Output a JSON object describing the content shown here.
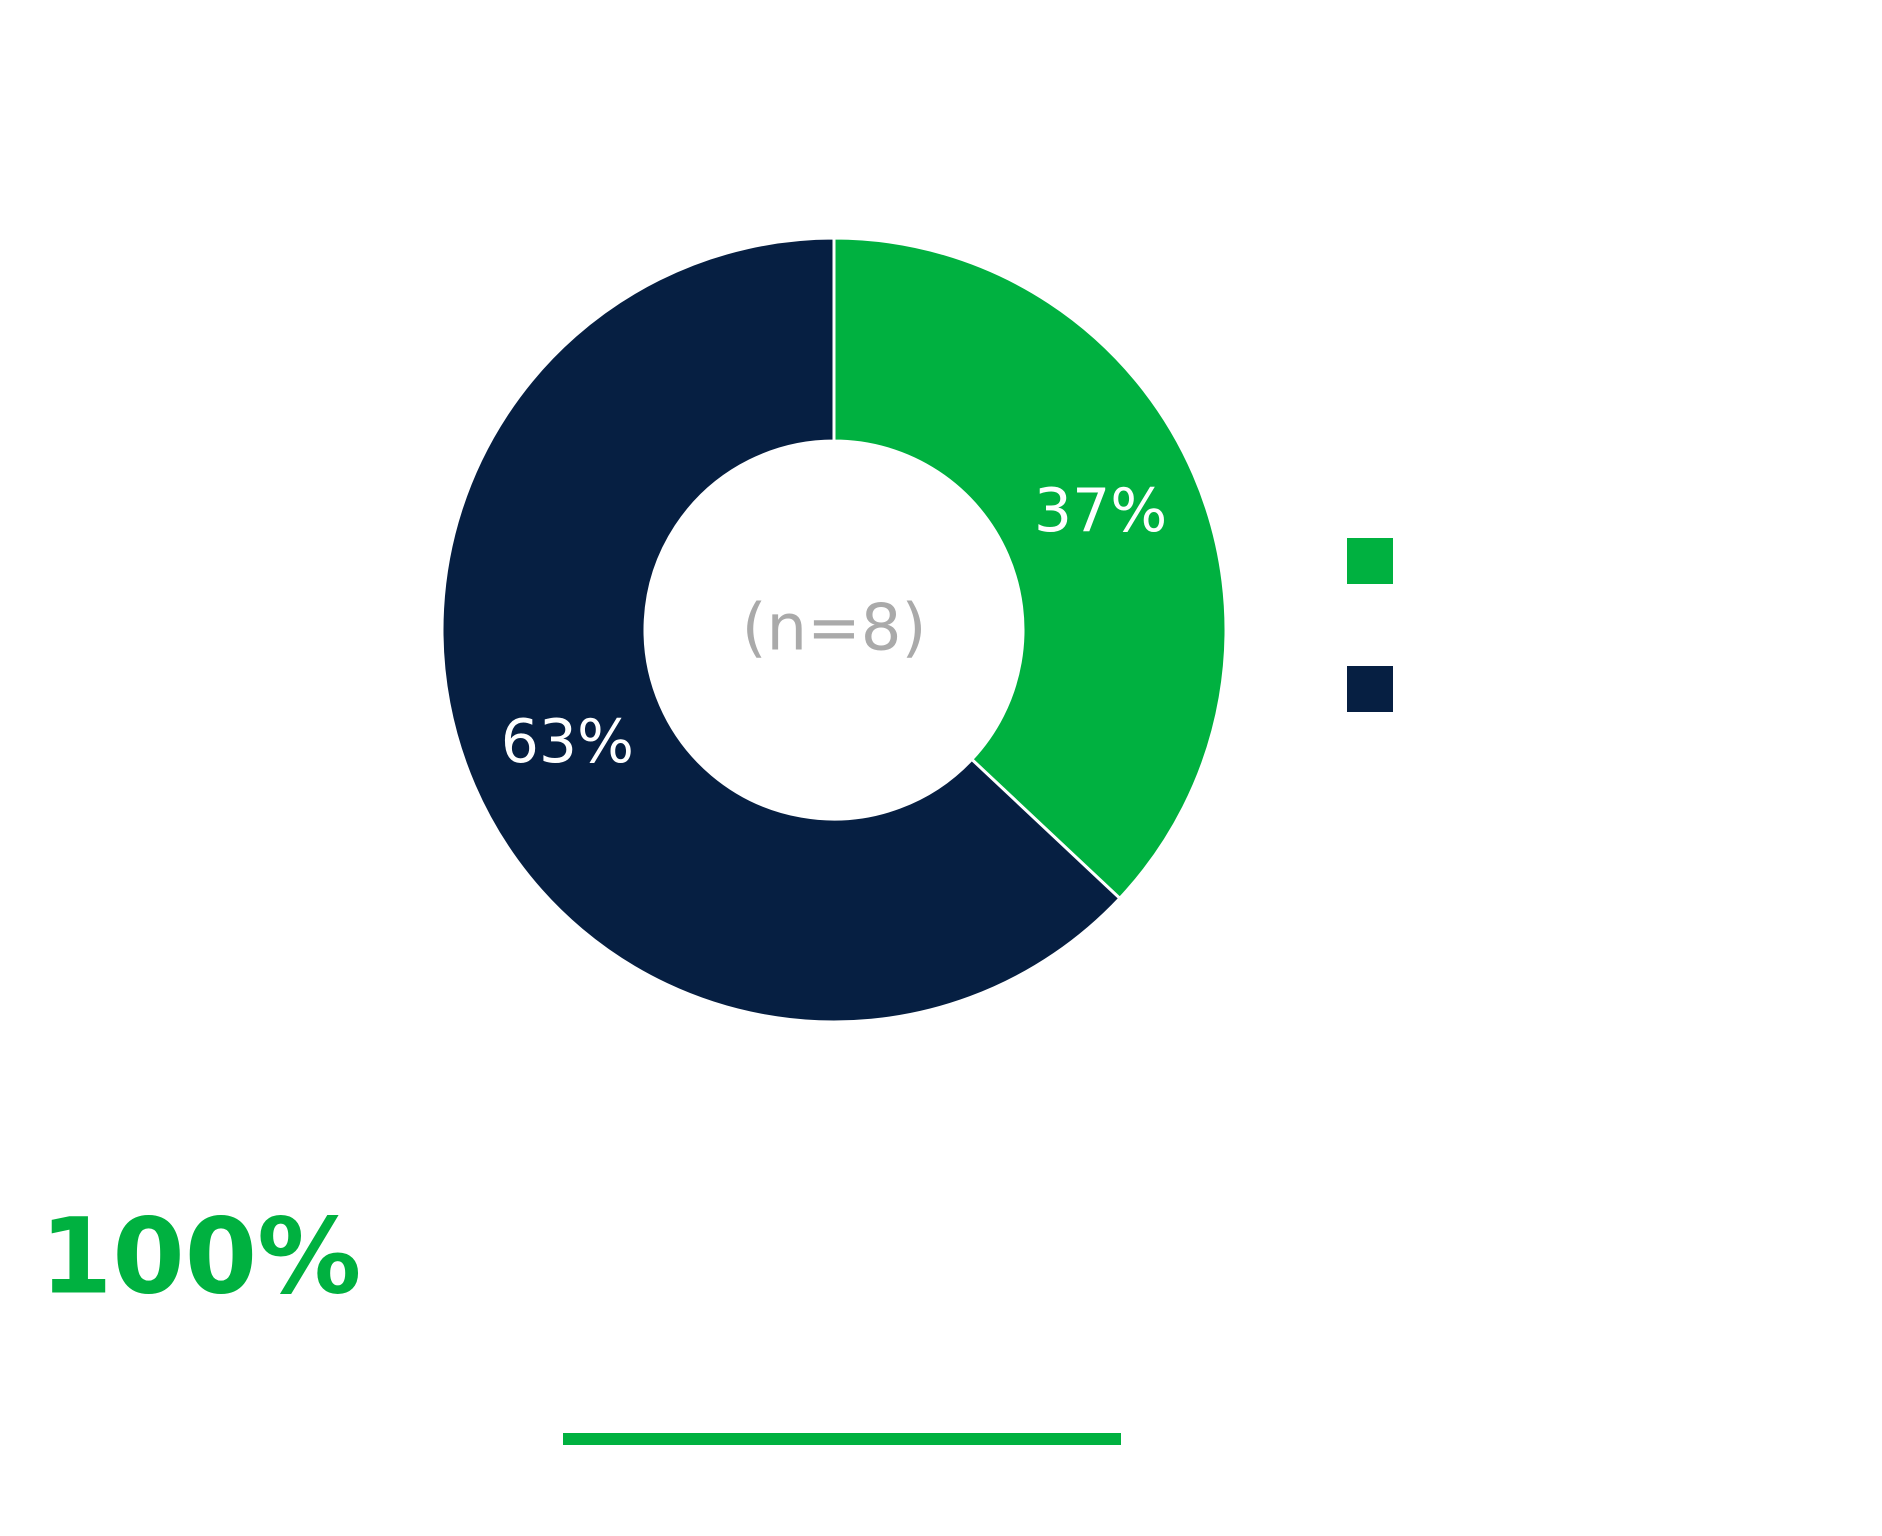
{
  "chart_data": {
    "type": "pie",
    "categories": [
      null,
      null
    ],
    "values": [
      37,
      63
    ],
    "value_labels": [
      "37%",
      "63%"
    ],
    "colors": [
      "#00b140",
      "#061f42"
    ],
    "center_text": "(n=8)",
    "annotation": "100%"
  }
}
